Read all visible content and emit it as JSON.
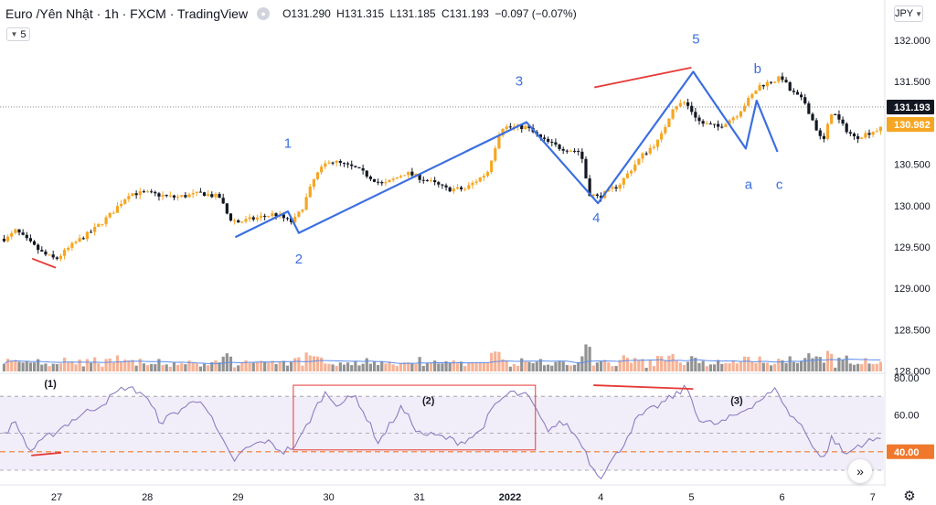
{
  "header": {
    "title": "Euro /Yên Nhật · 1h · FXCM · TradingView",
    "open": "O131.290",
    "high": "H131.315",
    "low": "L131.185",
    "close": "C131.193",
    "change": "−0.097 (−0.07%)"
  },
  "controls": {
    "indicator_count": "5",
    "currency": "JPY",
    "nav_icon": "double-chevron-right-icon",
    "settings_icon": "gear-icon"
  },
  "colors": {
    "up_candle": "#f5a623",
    "down_candle": "#131722",
    "wave_line": "#3b6fe0",
    "divergence_line": "#e53935",
    "rsi_line": "#8e7cc3",
    "rsi_band": "#ede7f6",
    "price_label_bg": "#131722",
    "price_label2_bg": "#f5a623",
    "rsi_label_bg": "#f0782d",
    "volume_up": "#f4a582",
    "volume_down": "#7f7f7f",
    "volume_ma": "#5b8def"
  },
  "chart_data": {
    "type": "candlestick",
    "symbol": "Euro /Yên Nhật",
    "interval": "1h",
    "x_tick_labels": [
      "27",
      "28",
      "29",
      "30",
      "31",
      "2022",
      "4",
      "5",
      "6",
      "7"
    ],
    "price_axis": {
      "ticks": [
        "132.000",
        "131.500",
        "131.000",
        "130.500",
        "130.000",
        "129.500",
        "129.000",
        "128.500",
        "128.000"
      ],
      "range": [
        128.0,
        132.0
      ],
      "last_price_label": "131.193",
      "second_price_label": "130.982"
    },
    "rsi_axis": {
      "ticks": [
        "80.00",
        "60.00"
      ],
      "range": [
        20,
        80
      ],
      "current_label": "40.00",
      "levels": [
        70,
        50,
        40,
        30
      ]
    },
    "elliott_wave_labels": [
      {
        "label": "1",
        "day": 29.55,
        "price": 130.7
      },
      {
        "label": "2",
        "day": 29.67,
        "price": 129.3
      },
      {
        "label": "3",
        "day": 32.1,
        "price": 131.45
      },
      {
        "label": "4",
        "day": 32.95,
        "price": 129.8
      },
      {
        "label": "5",
        "day": 34.05,
        "price": 131.96
      },
      {
        "label": "a",
        "day": 34.63,
        "price": 130.2
      },
      {
        "label": "b",
        "day": 34.73,
        "price": 131.6
      },
      {
        "label": "c",
        "day": 34.97,
        "price": 130.2
      }
    ],
    "wave_path": [
      {
        "day": 28.97,
        "price": 129.62
      },
      {
        "day": 29.55,
        "price": 129.93
      },
      {
        "day": 29.67,
        "price": 129.67
      },
      {
        "day": 32.18,
        "price": 131.01
      },
      {
        "day": 32.97,
        "price": 130.03
      },
      {
        "day": 34.02,
        "price": 131.62
      },
      {
        "day": 34.6,
        "price": 130.69
      },
      {
        "day": 34.72,
        "price": 131.27
      },
      {
        "day": 34.95,
        "price": 130.65
      }
    ],
    "price_divergence_lines": [
      {
        "from": {
          "day": 26.73,
          "price": 129.36
        },
        "to": {
          "day": 26.99,
          "price": 129.25
        }
      },
      {
        "from": {
          "day": 32.93,
          "price": 131.43
        },
        "to": {
          "day": 34.0,
          "price": 131.67
        }
      }
    ],
    "rsi_annotations": [
      {
        "label": "(1)",
        "day": 26.93,
        "value": 75
      },
      {
        "label": "(2)",
        "day": 31.1,
        "value": 66
      },
      {
        "label": "(3)",
        "day": 34.5,
        "value": 66
      }
    ],
    "rsi_divergence_lines": [
      {
        "from": {
          "day": 26.72,
          "value": 38
        },
        "to": {
          "day": 27.05,
          "value": 39.5
        }
      },
      {
        "from": {
          "day": 32.92,
          "value": 76
        },
        "to": {
          "day": 34.02,
          "value": 74
        }
      }
    ],
    "rsi_box": {
      "from_day": 29.61,
      "to_day": 32.28,
      "top_value": 76,
      "bottom_value": 41
    },
    "candle_anchors": [
      {
        "day": 26.45,
        "price": 129.6
      },
      {
        "day": 26.55,
        "price": 129.7
      },
      {
        "day": 26.65,
        "price": 129.6
      },
      {
        "day": 26.85,
        "price": 129.42
      },
      {
        "day": 26.99,
        "price": 129.35
      },
      {
        "day": 27.2,
        "price": 129.55
      },
      {
        "day": 27.4,
        "price": 129.7
      },
      {
        "day": 27.6,
        "price": 129.9
      },
      {
        "day": 27.8,
        "price": 130.15
      },
      {
        "day": 28.0,
        "price": 130.15
      },
      {
        "day": 28.3,
        "price": 130.1
      },
      {
        "day": 28.6,
        "price": 130.15
      },
      {
        "day": 28.8,
        "price": 130.1
      },
      {
        "day": 28.9,
        "price": 129.85
      },
      {
        "day": 29.0,
        "price": 129.8
      },
      {
        "day": 29.2,
        "price": 129.85
      },
      {
        "day": 29.4,
        "price": 129.9
      },
      {
        "day": 29.6,
        "price": 129.8
      },
      {
        "day": 29.7,
        "price": 129.95
      },
      {
        "day": 29.85,
        "price": 130.35
      },
      {
        "day": 30.0,
        "price": 130.55
      },
      {
        "day": 30.3,
        "price": 130.45
      },
      {
        "day": 30.6,
        "price": 130.25
      },
      {
        "day": 30.85,
        "price": 130.4
      },
      {
        "day": 31.1,
        "price": 130.3
      },
      {
        "day": 31.3,
        "price": 130.2
      },
      {
        "day": 31.5,
        "price": 130.2
      },
      {
        "day": 31.75,
        "price": 130.4
      },
      {
        "day": 31.9,
        "price": 130.95
      },
      {
        "day": 32.18,
        "price": 130.95
      },
      {
        "day": 32.35,
        "price": 130.8
      },
      {
        "day": 32.55,
        "price": 130.7
      },
      {
        "day": 32.78,
        "price": 130.65
      },
      {
        "day": 32.87,
        "price": 130.15
      },
      {
        "day": 32.97,
        "price": 130.1
      },
      {
        "day": 33.2,
        "price": 130.25
      },
      {
        "day": 33.45,
        "price": 130.6
      },
      {
        "day": 33.65,
        "price": 130.8
      },
      {
        "day": 33.8,
        "price": 131.2
      },
      {
        "day": 33.93,
        "price": 131.25
      },
      {
        "day": 34.1,
        "price": 131.0
      },
      {
        "day": 34.3,
        "price": 130.95
      },
      {
        "day": 34.5,
        "price": 131.1
      },
      {
        "day": 34.75,
        "price": 131.45
      },
      {
        "day": 35.0,
        "price": 131.55
      },
      {
        "day": 35.08,
        "price": 131.4
      },
      {
        "day": 35.25,
        "price": 131.25
      },
      {
        "day": 35.45,
        "price": 130.75
      },
      {
        "day": 35.55,
        "price": 131.15
      },
      {
        "day": 35.68,
        "price": 130.95
      },
      {
        "day": 35.8,
        "price": 130.82
      },
      {
        "day": 36.0,
        "price": 130.9
      },
      {
        "day": 36.3,
        "price": 131.0
      }
    ],
    "rsi_anchors": [
      {
        "day": 26.42,
        "value": 50
      },
      {
        "day": 26.55,
        "value": 56
      },
      {
        "day": 26.7,
        "value": 40
      },
      {
        "day": 26.9,
        "value": 48
      },
      {
        "day": 27.2,
        "value": 58
      },
      {
        "day": 27.5,
        "value": 66
      },
      {
        "day": 27.75,
        "value": 75
      },
      {
        "day": 27.95,
        "value": 72
      },
      {
        "day": 28.15,
        "value": 56
      },
      {
        "day": 28.4,
        "value": 64
      },
      {
        "day": 28.6,
        "value": 69
      },
      {
        "day": 28.8,
        "value": 48
      },
      {
        "day": 28.95,
        "value": 35
      },
      {
        "day": 29.1,
        "value": 42
      },
      {
        "day": 29.3,
        "value": 46
      },
      {
        "day": 29.5,
        "value": 40
      },
      {
        "day": 29.65,
        "value": 44
      },
      {
        "day": 29.8,
        "value": 58
      },
      {
        "day": 29.95,
        "value": 72
      },
      {
        "day": 30.1,
        "value": 66
      },
      {
        "day": 30.3,
        "value": 70
      },
      {
        "day": 30.55,
        "value": 45
      },
      {
        "day": 30.8,
        "value": 64
      },
      {
        "day": 31.0,
        "value": 50
      },
      {
        "day": 31.25,
        "value": 48
      },
      {
        "day": 31.45,
        "value": 45
      },
      {
        "day": 31.65,
        "value": 50
      },
      {
        "day": 31.85,
        "value": 66
      },
      {
        "day": 32.0,
        "value": 72
      },
      {
        "day": 32.2,
        "value": 70
      },
      {
        "day": 32.4,
        "value": 52
      },
      {
        "day": 32.6,
        "value": 56
      },
      {
        "day": 32.8,
        "value": 44
      },
      {
        "day": 32.9,
        "value": 32
      },
      {
        "day": 33.0,
        "value": 27
      },
      {
        "day": 33.2,
        "value": 40
      },
      {
        "day": 33.4,
        "value": 58
      },
      {
        "day": 33.6,
        "value": 64
      },
      {
        "day": 33.8,
        "value": 70
      },
      {
        "day": 33.95,
        "value": 75
      },
      {
        "day": 34.1,
        "value": 56
      },
      {
        "day": 34.3,
        "value": 55
      },
      {
        "day": 34.5,
        "value": 60
      },
      {
        "day": 34.75,
        "value": 68
      },
      {
        "day": 34.95,
        "value": 74
      },
      {
        "day": 35.05,
        "value": 62
      },
      {
        "day": 35.2,
        "value": 55
      },
      {
        "day": 35.45,
        "value": 35
      },
      {
        "day": 35.55,
        "value": 48
      },
      {
        "day": 35.7,
        "value": 38
      },
      {
        "day": 35.85,
        "value": 44
      },
      {
        "day": 36.0,
        "value": 46
      },
      {
        "day": 36.3,
        "value": 50
      }
    ]
  }
}
